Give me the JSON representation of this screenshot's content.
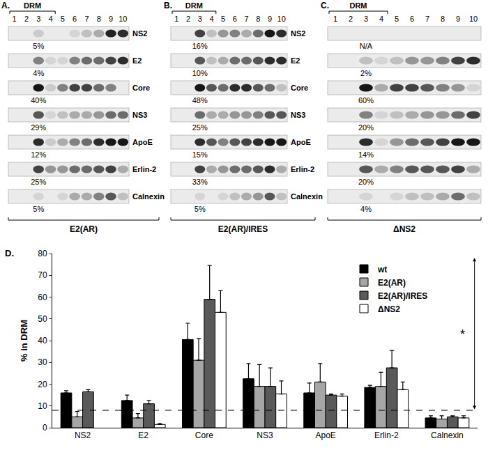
{
  "blots": {
    "lanes": [
      1,
      2,
      3,
      4,
      5,
      6,
      7,
      8,
      9,
      10
    ],
    "drm_label": "DRM",
    "drm_lanes": [
      1,
      4
    ],
    "proteins": [
      "NS2",
      "E2",
      "Core",
      "NS3",
      "ApoE",
      "Erlin-2",
      "Calnexin"
    ],
    "panels": [
      {
        "letter": "A.",
        "name": "E2(AR)",
        "labels_printed": true,
        "percent_labels": [
          "5%",
          "4%",
          "40%",
          "29%",
          "12%",
          "25%",
          "5%"
        ],
        "bands": [
          [
            0,
            0,
            0.15,
            0,
            0,
            0.1,
            0.2,
            0.3,
            0.95,
            0.9
          ],
          [
            0,
            0,
            0.5,
            0.1,
            0.1,
            0.5,
            0.6,
            0.6,
            0.8,
            0.9
          ],
          [
            0,
            0,
            1,
            0.15,
            0.5,
            0.8,
            0.8,
            0.6,
            0.5,
            0
          ],
          [
            0,
            0,
            0.7,
            0.1,
            0.2,
            0.3,
            0.3,
            0.4,
            0.6,
            0.6
          ],
          [
            0,
            0,
            0.9,
            0.15,
            0.3,
            0.5,
            0.6,
            0.9,
            1,
            1
          ],
          [
            0,
            0,
            0.8,
            0.4,
            0.4,
            0.6,
            0.6,
            0.7,
            0.8,
            0.3
          ],
          [
            0,
            0,
            0.1,
            0,
            0.1,
            0.3,
            0.3,
            0.5,
            0.7,
            0.2
          ]
        ]
      },
      {
        "letter": "B.",
        "name": "E2(AR)/IRES",
        "labels_printed": true,
        "percent_labels": [
          "16%",
          "10%",
          "48%",
          "25%",
          "15%",
          "33%",
          "5%"
        ],
        "bands": [
          [
            0,
            0,
            0.8,
            0.2,
            0.4,
            0.5,
            0.3,
            0.6,
            1,
            0.9
          ],
          [
            0,
            0,
            0.7,
            0.2,
            0.3,
            0.6,
            0.6,
            0.7,
            0.9,
            0.9
          ],
          [
            0,
            0,
            1,
            0.7,
            0.6,
            0.9,
            0.9,
            0.7,
            0.6,
            0.2
          ],
          [
            0,
            0,
            0.6,
            0.3,
            0.3,
            0.4,
            0.4,
            0.5,
            0.7,
            0.7
          ],
          [
            0,
            0,
            0.9,
            0.7,
            0.5,
            0.7,
            0.8,
            0.9,
            1,
            1
          ],
          [
            0,
            0,
            0.8,
            0.3,
            0.4,
            0.6,
            0.6,
            0.7,
            0.9,
            0.3
          ],
          [
            0,
            0,
            0.1,
            0,
            0.1,
            0.2,
            0.3,
            0.4,
            0.7,
            0.2
          ]
        ]
      },
      {
        "letter": "C.",
        "name": "ΔNS2",
        "labels_printed": false,
        "percent_labels": [
          "N/A",
          "2%",
          "60%",
          "20%",
          "14%",
          "20%",
          "4%"
        ],
        "bands": [
          [
            0,
            0,
            0,
            0,
            0,
            0,
            0,
            0,
            0,
            0
          ],
          [
            0,
            0,
            0.2,
            0.1,
            0.2,
            0.4,
            0.4,
            0.5,
            0.8,
            0.9
          ],
          [
            0,
            0,
            1,
            0.3,
            0.8,
            0.8,
            0.7,
            0.5,
            0.4,
            0.1
          ],
          [
            0,
            0,
            0.5,
            0.1,
            0.2,
            0.3,
            0.4,
            0.4,
            0.6,
            0.8
          ],
          [
            0,
            0,
            0.9,
            0.1,
            0.4,
            0.6,
            0.7,
            0.8,
            1,
            1
          ],
          [
            0,
            0,
            0.7,
            0.3,
            0.5,
            0.7,
            0.7,
            0.7,
            0.8,
            0.3
          ],
          [
            0,
            0,
            0.1,
            0,
            0.1,
            0.2,
            0.2,
            0.3,
            0.6,
            0.2
          ]
        ]
      }
    ]
  },
  "chart_data": {
    "type": "bar",
    "panel_label": "D.",
    "ylabel": "% in DRM",
    "categories": [
      "NS2",
      "E2",
      "Core",
      "NS3",
      "ApoE",
      "Erlin-2",
      "Calnexin"
    ],
    "series": [
      {
        "name": "wt",
        "color": "#000000",
        "values": [
          16,
          12.5,
          40.5,
          22.5,
          16,
          18.5,
          4.5
        ],
        "errors": [
          1,
          2.5,
          7.5,
          7,
          4.5,
          1,
          1
        ]
      },
      {
        "name": "E2(AR)",
        "color": "#a6a6a6",
        "values": [
          5,
          4.5,
          31,
          19,
          21,
          19,
          4
        ],
        "errors": [
          2.5,
          2,
          10,
          10,
          8.5,
          6.5,
          1.5
        ]
      },
      {
        "name": "E2(AR)/IRES",
        "color": "#595959",
        "values": [
          16.5,
          11,
          59,
          19,
          15,
          27.5,
          5
        ],
        "errors": [
          1,
          1.5,
          15.5,
          8.5,
          0.5,
          8,
          0.5
        ]
      },
      {
        "name": "ΔNS2",
        "color": "#ffffff",
        "values": [
          null,
          1.5,
          53,
          15.5,
          14.5,
          17.5,
          4.5
        ],
        "errors": [
          null,
          0.5,
          10,
          6,
          1,
          3.5,
          1
        ]
      }
    ],
    "ylim": [
      0,
      80
    ],
    "yticks": [
      0,
      10,
      20,
      30,
      40,
      50,
      60,
      70,
      80
    ],
    "grid": false,
    "legend": "upper right",
    "reference_line": 8,
    "annotations": [
      {
        "text": "*",
        "from": 8,
        "to": 78
      }
    ]
  }
}
